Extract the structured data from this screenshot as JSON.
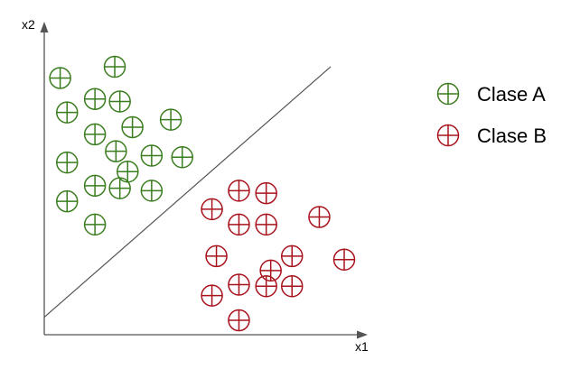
{
  "chart_data": {
    "type": "scatter",
    "xlabel": "x1",
    "ylabel": "x2",
    "xlim": [
      0,
      100
    ],
    "ylim": [
      0,
      100
    ],
    "grid": false,
    "legend_position": "top-right",
    "series": [
      {
        "name": "Clase A",
        "color": "#3a7d1e",
        "marker": "circle-plus",
        "points": [
          [
            5.3,
            82.0
          ],
          [
            23.5,
            85.6
          ],
          [
            7.6,
            71.0
          ],
          [
            16.9,
            75.3
          ],
          [
            25.2,
            74.5
          ],
          [
            16.9,
            64.0
          ],
          [
            29.4,
            66.3
          ],
          [
            42.2,
            68.7
          ],
          [
            23.9,
            58.6
          ],
          [
            7.6,
            55.0
          ],
          [
            35.8,
            57.2
          ],
          [
            46.0,
            56.7
          ],
          [
            27.8,
            52.1
          ],
          [
            16.9,
            47.6
          ],
          [
            25.2,
            46.8
          ],
          [
            35.8,
            46.0
          ],
          [
            7.6,
            42.6
          ],
          [
            16.9,
            35.2
          ]
        ]
      },
      {
        "name": "Clase B",
        "color": "#a8121c",
        "marker": "circle-plus",
        "points": [
          [
            64.9,
            46.0
          ],
          [
            74.0,
            45.2
          ],
          [
            55.9,
            40.1
          ],
          [
            91.7,
            37.6
          ],
          [
            64.9,
            35.2
          ],
          [
            74.0,
            35.2
          ],
          [
            57.4,
            25.1
          ],
          [
            82.6,
            25.1
          ],
          [
            100.0,
            24.0
          ],
          [
            75.5,
            20.5
          ],
          [
            64.9,
            16.0
          ],
          [
            74.0,
            15.5
          ],
          [
            82.6,
            15.5
          ],
          [
            55.9,
            12.5
          ],
          [
            64.9,
            4.6
          ]
        ]
      }
    ],
    "annotations": [
      {
        "type": "line",
        "from": [
          0,
          5.6
        ],
        "to": [
          95.5,
          85.6
        ]
      }
    ]
  }
}
